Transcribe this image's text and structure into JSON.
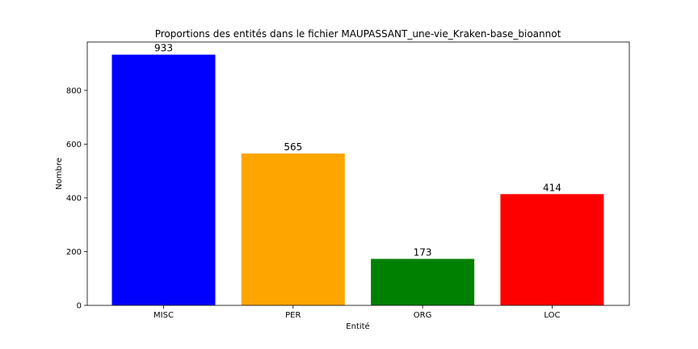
{
  "chart_data": {
    "type": "bar",
    "title": "Proportions des entités dans le fichier MAUPASSANT_une-vie_Kraken-base_bioannot",
    "xlabel": "Entité",
    "ylabel": "Nombre",
    "categories": [
      "MISC",
      "PER",
      "ORG",
      "LOC"
    ],
    "values": [
      933,
      565,
      173,
      414
    ],
    "data_labels": [
      "933",
      "565",
      "173",
      "414"
    ],
    "colors": [
      "#0000ff",
      "#ffa500",
      "#008000",
      "#ff0000"
    ],
    "ylim": [
      0,
      980
    ],
    "yticks": [
      0,
      200,
      400,
      600,
      800
    ],
    "ytick_labels": [
      "0",
      "200",
      "400",
      "600",
      "800"
    ],
    "grid": false,
    "legend": "none"
  }
}
